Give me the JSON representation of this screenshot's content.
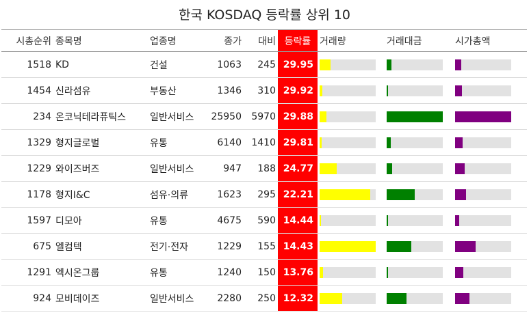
{
  "title": "한국 KOSDAQ 등락률 상위 10",
  "columns": {
    "rank": "시총순위",
    "name": "종목명",
    "sector": "업종명",
    "close": "종가",
    "change": "대비",
    "pct": "등락률",
    "volume": "거래량",
    "value": "거래대금",
    "cap": "시가총액"
  },
  "colors": {
    "pct_bg": "#ff0000",
    "volume_bar": "#ffff00",
    "value_bar": "#008000",
    "cap_bar": "#800080",
    "bar_track": "#e2e2e2"
  },
  "rows": [
    {
      "rank": "1518",
      "name": "KD",
      "sector": "건설",
      "close": "1063",
      "change": "245",
      "pct": "29.95",
      "volume": 0.2,
      "value": 0.08,
      "cap": 0.11
    },
    {
      "rank": "1454",
      "name": "신라섬유",
      "sector": "부동산",
      "close": "1346",
      "change": "310",
      "pct": "29.92",
      "volume": 0.05,
      "value": 0.02,
      "cap": 0.12
    },
    {
      "rank": "234",
      "name": "온코닉테라퓨틱스",
      "sector": "일반서비스",
      "close": "25950",
      "change": "5970",
      "pct": "29.88",
      "volume": 0.12,
      "value": 1.0,
      "cap": 1.0
    },
    {
      "rank": "1329",
      "name": "형지글로벌",
      "sector": "유통",
      "close": "6140",
      "change": "1410",
      "pct": "29.81",
      "volume": 0.04,
      "value": 0.07,
      "cap": 0.14
    },
    {
      "rank": "1229",
      "name": "와이즈버즈",
      "sector": "일반서비스",
      "close": "947",
      "change": "188",
      "pct": "24.77",
      "volume": 0.3,
      "value": 0.1,
      "cap": 0.17
    },
    {
      "rank": "1178",
      "name": "형지I&C",
      "sector": "섬유·의류",
      "close": "1623",
      "change": "295",
      "pct": "22.21",
      "volume": 0.9,
      "value": 0.5,
      "cap": 0.19
    },
    {
      "rank": "1597",
      "name": "디모아",
      "sector": "유통",
      "close": "4675",
      "change": "590",
      "pct": "14.44",
      "volume": 0.02,
      "value": 0.02,
      "cap": 0.07
    },
    {
      "rank": "675",
      "name": "엘컴텍",
      "sector": "전기·전자",
      "close": "1229",
      "change": "155",
      "pct": "14.43",
      "volume": 1.0,
      "value": 0.44,
      "cap": 0.37
    },
    {
      "rank": "1291",
      "name": "엑시온그룹",
      "sector": "유통",
      "close": "1240",
      "change": "150",
      "pct": "13.76",
      "volume": 0.06,
      "value": 0.03,
      "cap": 0.15
    },
    {
      "rank": "924",
      "name": "모비데이즈",
      "sector": "일반서비스",
      "close": "2280",
      "change": "250",
      "pct": "12.32",
      "volume": 0.4,
      "value": 0.35,
      "cap": 0.26
    }
  ]
}
